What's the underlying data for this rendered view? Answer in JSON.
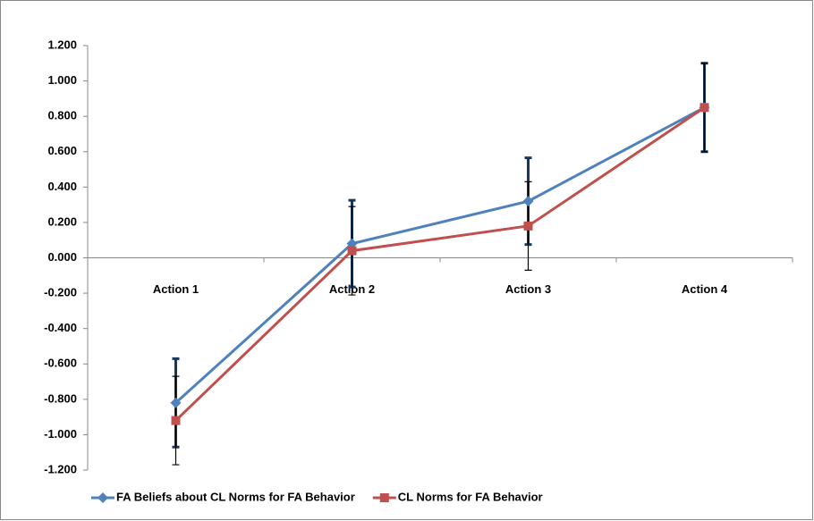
{
  "chart_data": {
    "type": "line",
    "categories": [
      "Action 1",
      "Action 2",
      "Action 3",
      "Action 4"
    ],
    "series": [
      {
        "name": "FA Beliefs about CL Norms for FA Behavior",
        "color": "#4f81bd",
        "marker": "diamond",
        "error_color": "#17375e",
        "values": [
          -0.82,
          0.08,
          0.32,
          0.85
        ],
        "errors": [
          0.25,
          0.245,
          0.245,
          0.25
        ]
      },
      {
        "name": "CL Norms for FA Behavior",
        "color": "#c0504d",
        "marker": "square",
        "error_color": "#000000",
        "values": [
          -0.92,
          0.04,
          0.18,
          0.85
        ],
        "errors": [
          0.25,
          0.25,
          0.25,
          0.25
        ]
      }
    ],
    "ylim": [
      -1.2,
      1.2
    ],
    "yticks": [
      {
        "value": -1.2,
        "label": "-1.200"
      },
      {
        "value": -1.0,
        "label": "-1.000"
      },
      {
        "value": -0.8,
        "label": "-0.800"
      },
      {
        "value": -0.6,
        "label": "-0.600"
      },
      {
        "value": -0.4,
        "label": "-0.400"
      },
      {
        "value": -0.2,
        "label": "-0.200"
      },
      {
        "value": 0,
        "label": "0.000"
      },
      {
        "value": 0.2,
        "label": "0.200"
      },
      {
        "value": 0.4,
        "label": "0.400"
      },
      {
        "value": 0.6,
        "label": "0.600"
      },
      {
        "value": 0.8,
        "label": "0.800"
      },
      {
        "value": 1.0,
        "label": "1.000"
      },
      {
        "value": 1.2,
        "label": "1.200"
      }
    ],
    "grid": false,
    "legend": "bottom"
  }
}
